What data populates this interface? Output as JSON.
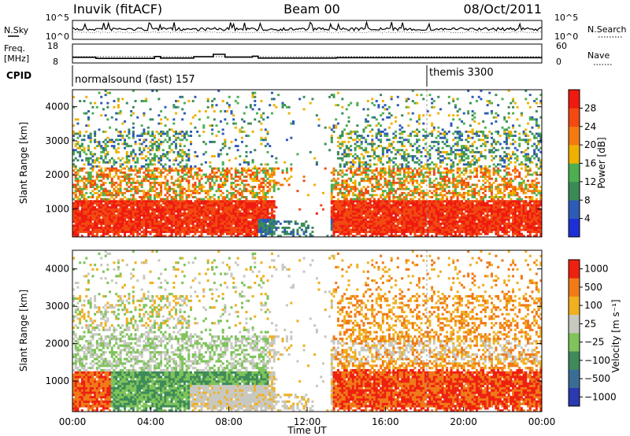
{
  "header": {
    "station": "Inuvik (fitACF)",
    "beam": "Beam 00",
    "date": "08/Oct/2011"
  },
  "colors": {
    "power": [
      "#1f2fd6",
      "#2d5bb5",
      "#3a8a58",
      "#4caf50",
      "#f0b000",
      "#f37a10",
      "#f24a10",
      "#ee1a10"
    ],
    "velocity": [
      "#2a3ab0",
      "#3a6d96",
      "#3f8a5a",
      "#7ec45a",
      "#c8c8c0",
      "#f0b020",
      "#f07a18",
      "#ee2010"
    ]
  },
  "chart_data": [
    {
      "type": "line",
      "panel": "nsky-nsearch",
      "left_label": "N.Sky",
      "right_label": "N.Search",
      "left_ticks": [
        "10^5",
        "10^0"
      ],
      "right_ticks": [
        "10^5",
        "10^0"
      ]
    },
    {
      "type": "line",
      "panel": "freq-nave",
      "left_label_line1": "Freq.",
      "left_label_line2": "[MHz]",
      "right_label": "Nave",
      "left_ticks": [
        18,
        8
      ],
      "right_ticks": [
        60,
        0
      ],
      "series": [
        {
          "name": "Freq.",
          "x_hours": [
            0,
            1.2,
            1.2,
            4.2,
            4.2,
            4.5,
            4.5,
            6.2,
            6.2,
            6.8,
            6.8,
            7.2,
            7.2,
            7.8,
            7.8,
            9.2,
            9.2,
            9.5,
            9.5,
            13.5,
            13.5,
            24
          ],
          "values": [
            11.0,
            11.0,
            10.4,
            10.4,
            11.4,
            11.4,
            10.6,
            10.6,
            11.3,
            11.3,
            11.3,
            11.3,
            12.6,
            12.6,
            11.1,
            11.1,
            11.6,
            11.6,
            10.6,
            10.6,
            10.8,
            10.8
          ]
        }
      ]
    },
    {
      "type": "table",
      "panel": "cpid",
      "label": "CPID",
      "segments": [
        {
          "start_hour": 0,
          "text": "normalsound (fast) 157"
        },
        {
          "start_hour": 18.1,
          "text": "themis 3300"
        }
      ]
    },
    {
      "type": "heatmap",
      "panel": "power",
      "ylabel": "Slant Range [km]",
      "ylim": [
        180,
        4500
      ],
      "yticks": [
        1000,
        2000,
        3000,
        4000
      ],
      "colorbar_label": "Power [dB]",
      "colorbar_ticks": [
        "28",
        "24",
        "20",
        "16",
        "12",
        "8",
        "4"
      ]
    },
    {
      "type": "heatmap",
      "panel": "velocity",
      "xlabel": "Time UT",
      "ylabel": "Slant Range [km]",
      "ylim": [
        180,
        4500
      ],
      "yticks": [
        1000,
        2000,
        3000,
        4000
      ],
      "xticks": [
        "00:00",
        "04:00",
        "08:00",
        "12:00",
        "16:00",
        "20:00",
        "00:00"
      ],
      "xlim_hours": [
        0,
        24
      ],
      "colorbar_label": "Velocity [m s⁻¹]",
      "colorbar_ticks": [
        "1000",
        "500",
        "100",
        "25",
        "−25",
        "−100",
        "−500",
        "−1000"
      ]
    }
  ]
}
